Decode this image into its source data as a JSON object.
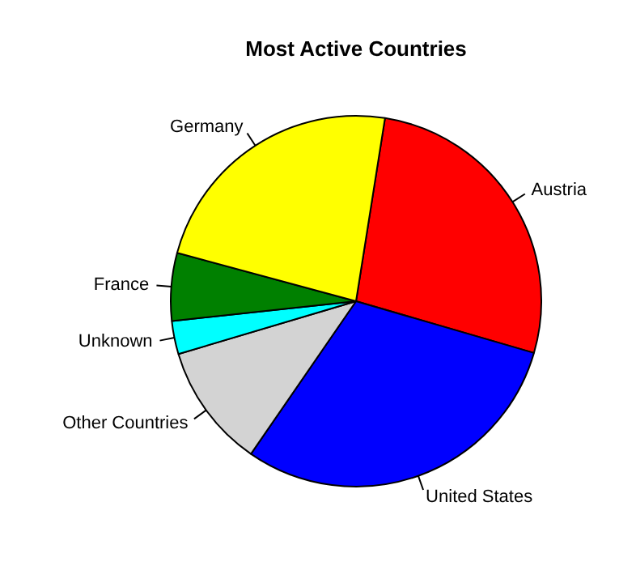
{
  "chart_data": {
    "type": "pie",
    "title": "Most Active Countries",
    "categories": [
      "Austria",
      "United States",
      "Other Countries",
      "Unknown",
      "France",
      "Germany"
    ],
    "values": [
      27,
      30.1,
      10.8,
      2.9,
      5.9,
      23.3
    ],
    "colors": [
      "#ff0000",
      "#0000ff",
      "#d3d3d3",
      "#00ffff",
      "#008000",
      "#ffff00"
    ],
    "legend": false
  }
}
